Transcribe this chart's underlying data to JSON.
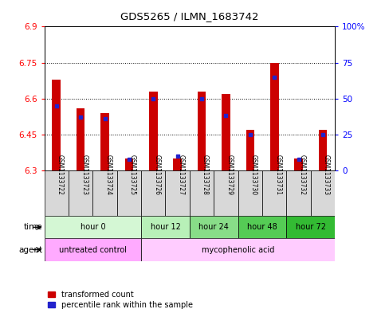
{
  "title": "GDS5265 / ILMN_1683742",
  "samples": [
    "GSM1133722",
    "GSM1133723",
    "GSM1133724",
    "GSM1133725",
    "GSM1133726",
    "GSM1133727",
    "GSM1133728",
    "GSM1133729",
    "GSM1133730",
    "GSM1133731",
    "GSM1133732",
    "GSM1133733"
  ],
  "red_values": [
    6.68,
    6.56,
    6.54,
    6.35,
    6.63,
    6.35,
    6.63,
    6.62,
    6.47,
    6.75,
    6.35,
    6.47
  ],
  "blue_values": [
    45,
    37,
    36,
    8,
    50,
    10,
    50,
    38,
    25,
    65,
    8,
    25
  ],
  "y_min": 6.3,
  "y_max": 6.9,
  "y_ticks": [
    6.3,
    6.45,
    6.6,
    6.75,
    6.9
  ],
  "y2_ticks": [
    0,
    25,
    50,
    75,
    100
  ],
  "y2_labels": [
    "0",
    "25",
    "50",
    "75",
    "100%"
  ],
  "time_groups": [
    {
      "label": "hour 0",
      "start": 0,
      "end": 4,
      "color": "#d4f7d4"
    },
    {
      "label": "hour 12",
      "start": 4,
      "end": 6,
      "color": "#b8f0b8"
    },
    {
      "label": "hour 24",
      "start": 6,
      "end": 8,
      "color": "#88dd88"
    },
    {
      "label": "hour 48",
      "start": 8,
      "end": 10,
      "color": "#55cc55"
    },
    {
      "label": "hour 72",
      "start": 10,
      "end": 12,
      "color": "#33bb33"
    }
  ],
  "agent_groups": [
    {
      "label": "untreated control",
      "start": 0,
      "end": 4,
      "color": "#ffaaff"
    },
    {
      "label": "mycophenolic acid",
      "start": 4,
      "end": 12,
      "color": "#ffccff"
    }
  ],
  "bar_color_red": "#cc0000",
  "bar_color_blue": "#2222cc",
  "bar_width": 0.35,
  "legend_red": "transformed count",
  "legend_blue": "percentile rank within the sample",
  "sample_bg": "#d8d8d8",
  "plot_bg": "#ffffff",
  "grid_color": "#000000"
}
